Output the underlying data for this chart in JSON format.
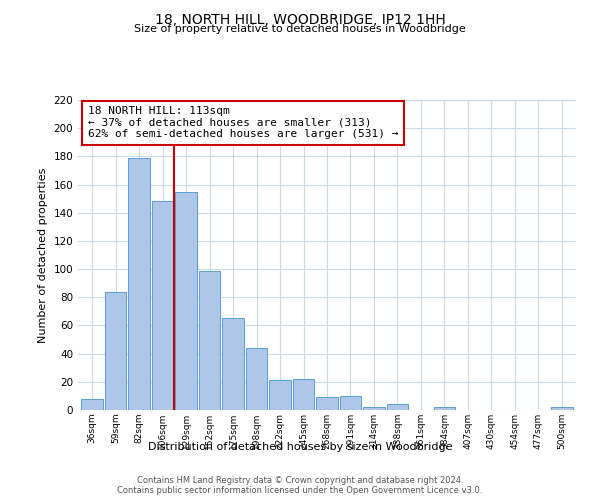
{
  "title": "18, NORTH HILL, WOODBRIDGE, IP12 1HH",
  "subtitle": "Size of property relative to detached houses in Woodbridge",
  "xlabel": "Distribution of detached houses by size in Woodbridge",
  "ylabel": "Number of detached properties",
  "categories": [
    "36sqm",
    "59sqm",
    "82sqm",
    "106sqm",
    "129sqm",
    "152sqm",
    "175sqm",
    "198sqm",
    "222sqm",
    "245sqm",
    "268sqm",
    "291sqm",
    "314sqm",
    "338sqm",
    "361sqm",
    "384sqm",
    "407sqm",
    "430sqm",
    "454sqm",
    "477sqm",
    "500sqm"
  ],
  "values": [
    8,
    84,
    179,
    148,
    155,
    99,
    65,
    44,
    21,
    22,
    9,
    10,
    2,
    4,
    0,
    2,
    0,
    0,
    0,
    0,
    2
  ],
  "bar_color": "#aec6e8",
  "bar_edge_color": "#5a9fd4",
  "reference_line_x": 3.5,
  "reference_line_color": "#cc0000",
  "annotation_text": "18 NORTH HILL: 113sqm\n← 37% of detached houses are smaller (313)\n62% of semi-detached houses are larger (531) →",
  "annotation_box_color": "#ffffff",
  "annotation_box_edge_color": "#cc0000",
  "ylim": [
    0,
    220
  ],
  "yticks": [
    0,
    20,
    40,
    60,
    80,
    100,
    120,
    140,
    160,
    180,
    200,
    220
  ],
  "footer_line1": "Contains HM Land Registry data © Crown copyright and database right 2024.",
  "footer_line2": "Contains public sector information licensed under the Open Government Licence v3.0.",
  "background_color": "#ffffff",
  "grid_color": "#ccd9e8"
}
